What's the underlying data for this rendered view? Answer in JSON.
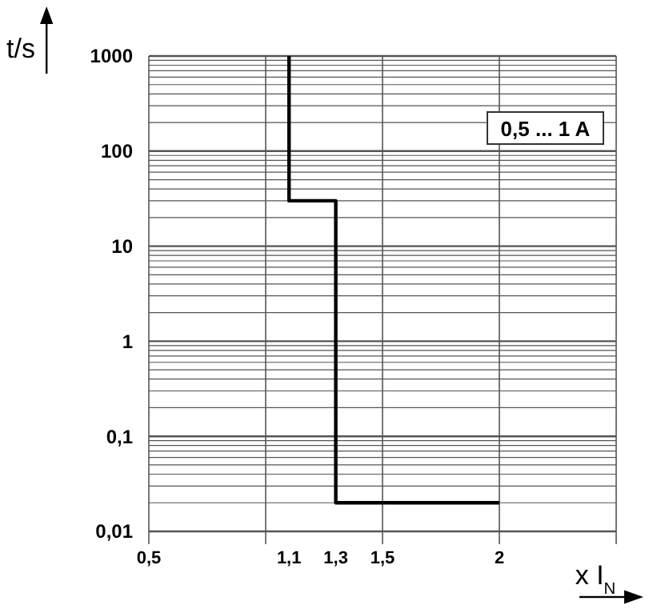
{
  "chart_data": {
    "type": "line",
    "xlabel": "x I$_{N}$",
    "ylabel": "t/s",
    "x": [
      1.1,
      1.1,
      1.3,
      1.3,
      2
    ],
    "series": [
      {
        "color": "#000000",
        "values": [
          1000,
          30,
          30,
          0.02,
          0.02
        ]
      }
    ],
    "xlim": [
      0.5,
      2.5
    ],
    "xticks": [
      {
        "value": 0.5,
        "label": "0,5"
      },
      {
        "value": 1,
        "label": null
      },
      {
        "value": 1.1,
        "label": "1,1"
      },
      {
        "value": 1.3,
        "label": "1,3"
      },
      {
        "value": 1.5,
        "label": "1,5"
      },
      {
        "value": 2,
        "label": "2"
      },
      {
        "value": 2.5,
        "label": null
      }
    ],
    "ylim": [
      0.01,
      1000
    ],
    "yticks": [
      {
        "value": 0.01,
        "label": "0,01"
      },
      {
        "value": 0.1,
        "label": "0,1"
      },
      1,
      10,
      100,
      1000
    ],
    "log": "y",
    "grid": true,
    "annotations": [
      "0,5 ... 1 A"
    ]
  }
}
